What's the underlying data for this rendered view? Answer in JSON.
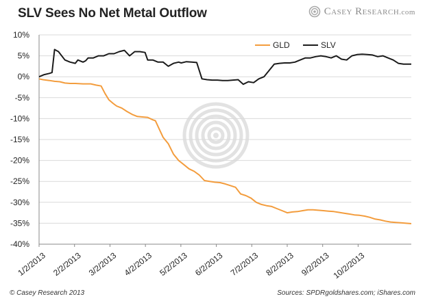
{
  "header": {
    "title": "SLV Sees No Net Metal Outflow",
    "brand": "Casey Research",
    "brand_domain": ".com"
  },
  "footer": {
    "credit": "© Casey Research 2013",
    "sources": "Sources: SPDRgoldshares.com; iShares.com"
  },
  "chart_data": {
    "type": "line",
    "title": "SLV Sees No Net Metal Outflow",
    "xlabel": "",
    "ylabel": "",
    "ylim": [
      -40,
      10
    ],
    "y_ticks": [
      10,
      5,
      0,
      -5,
      -10,
      -15,
      -20,
      -25,
      -30,
      -35,
      -40
    ],
    "y_tick_labels": [
      "10%",
      "5%",
      "0%",
      "-5%",
      "-10%",
      "-15%",
      "-20%",
      "-25%",
      "-30%",
      "-35%",
      "-40%"
    ],
    "x_ticks": [
      "1/2/2013",
      "2/2/2013",
      "3/2/2013",
      "4/2/2013",
      "5/2/2013",
      "6/2/2013",
      "7/2/2013",
      "8/2/2013",
      "9/2/2013",
      "10/2/2013"
    ],
    "grid": "horizontal",
    "legend_position": "top-right",
    "x_units": "day index (0 = 1/2/2013)",
    "series": [
      {
        "name": "GLD",
        "color": "#f39c3c",
        "x": [
          0,
          3,
          8,
          12,
          16,
          20,
          24,
          28,
          34,
          40,
          44,
          48,
          51,
          54,
          57,
          60,
          64,
          68,
          72,
          76,
          80,
          84,
          88,
          90,
          93,
          96,
          100,
          104,
          108,
          112,
          116,
          120,
          124,
          128,
          132,
          136,
          140,
          144,
          148,
          152,
          156,
          160,
          164,
          168,
          172,
          176,
          180,
          184,
          188,
          192,
          196,
          200,
          204,
          208,
          212,
          216,
          220,
          224,
          228,
          232,
          236,
          240,
          244,
          248,
          252,
          256,
          260,
          264,
          268,
          272,
          276,
          280,
          284,
          288
        ],
        "values": [
          -0.5,
          -0.7,
          -0.9,
          -1.1,
          -1.2,
          -1.5,
          -1.6,
          -1.6,
          -1.7,
          -1.7,
          -2.0,
          -2.2,
          -4.0,
          -5.5,
          -6.3,
          -7.0,
          -7.5,
          -8.3,
          -9.0,
          -9.5,
          -9.6,
          -9.7,
          -10.3,
          -10.5,
          -12.5,
          -14.5,
          -16.0,
          -18.5,
          -20.0,
          -21.0,
          -22.0,
          -22.6,
          -23.5,
          -24.8,
          -25.0,
          -25.2,
          -25.3,
          -25.6,
          -26.0,
          -26.4,
          -28.0,
          -28.4,
          -29.0,
          -30.0,
          -30.5,
          -30.8,
          -31.0,
          -31.5,
          -32.0,
          -32.5,
          -32.3,
          -32.2,
          -32.0,
          -31.8,
          -31.8,
          -31.9,
          -32.0,
          -32.1,
          -32.2,
          -32.4,
          -32.6,
          -32.8,
          -33.0,
          -33.1,
          -33.3,
          -33.6,
          -34.0,
          -34.2,
          -34.5,
          -34.7,
          -34.8,
          -34.9,
          -35.0,
          -35.1
        ]
      },
      {
        "name": "SLV",
        "color": "#1a1a1a",
        "x": [
          0,
          4,
          8,
          10,
          12,
          15,
          20,
          24,
          28,
          30,
          34,
          36,
          38,
          42,
          46,
          50,
          54,
          58,
          62,
          66,
          70,
          74,
          78,
          82,
          84,
          88,
          92,
          96,
          100,
          104,
          108,
          110,
          114,
          118,
          122,
          126,
          130,
          134,
          138,
          142,
          146,
          150,
          154,
          158,
          162,
          166,
          170,
          174,
          178,
          182,
          186,
          190,
          194,
          198,
          202,
          206,
          210,
          214,
          218,
          222,
          226,
          230,
          234,
          238,
          242,
          246,
          250,
          254,
          258,
          262,
          266,
          270,
          274,
          278,
          282,
          286,
          288
        ],
        "values": [
          0.0,
          0.5,
          0.8,
          1.0,
          6.5,
          6.0,
          4.0,
          3.5,
          3.2,
          4.0,
          3.5,
          3.8,
          4.5,
          4.5,
          5.0,
          5.0,
          5.5,
          5.5,
          6.0,
          6.3,
          5.0,
          6.0,
          6.0,
          5.8,
          4.0,
          4.0,
          3.5,
          3.5,
          2.5,
          3.2,
          3.5,
          3.3,
          3.6,
          3.5,
          3.4,
          -0.5,
          -0.7,
          -0.8,
          -0.8,
          -0.9,
          -0.9,
          -0.8,
          -0.7,
          -1.8,
          -1.2,
          -1.4,
          -0.5,
          0.0,
          1.5,
          3.0,
          3.2,
          3.3,
          3.3,
          3.5,
          4.0,
          4.5,
          4.5,
          4.8,
          5.0,
          4.8,
          4.5,
          5.0,
          4.2,
          4.0,
          5.0,
          5.3,
          5.4,
          5.3,
          5.2,
          4.8,
          5.0,
          4.5,
          4.0,
          3.2,
          3.0,
          3.0,
          3.0
        ]
      }
    ]
  },
  "colors": {
    "gld": "#f39c3c",
    "slv": "#1a1a1a",
    "grid": "#d9d9d9",
    "axis": "#888888",
    "watermark": "#e2e2e2",
    "brand_logo": "#a9a9a9"
  }
}
